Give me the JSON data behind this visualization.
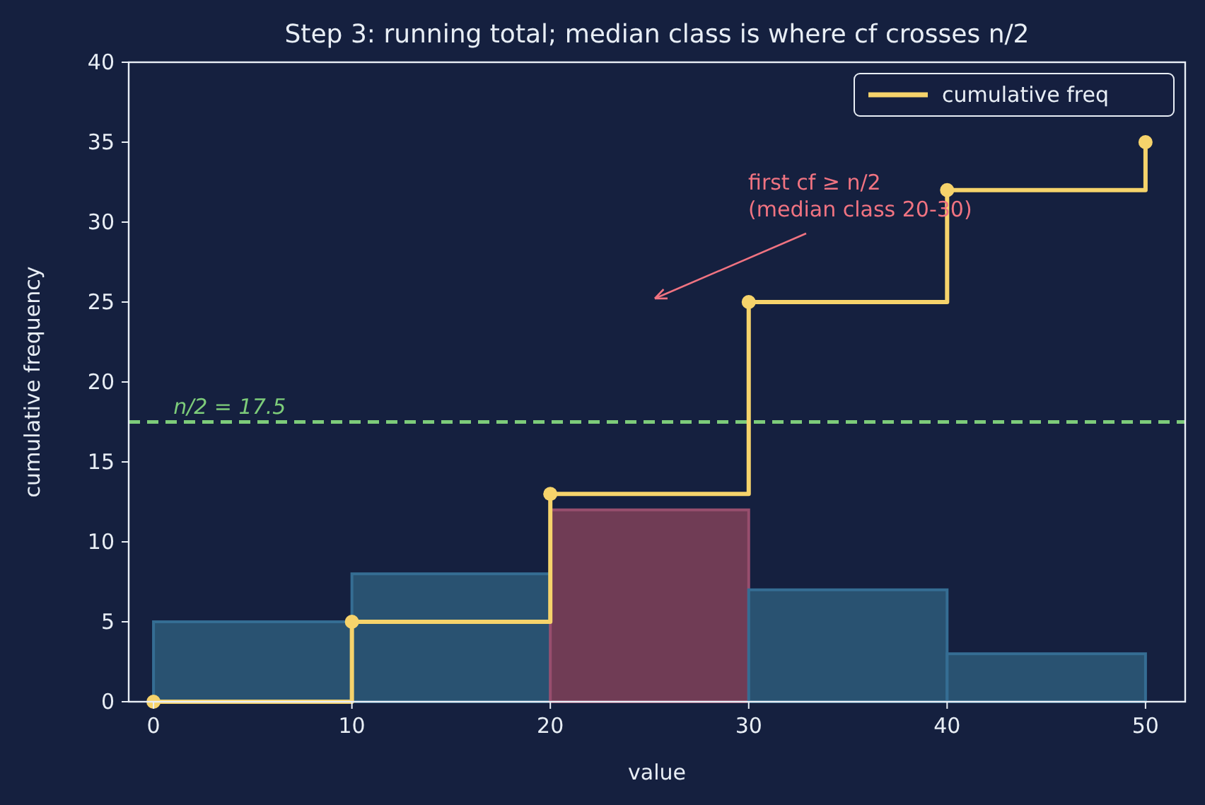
{
  "chart_data": {
    "type": "histogram",
    "title": "Step 3: running total; median class is where cf crosses n/2",
    "xlabel": "value",
    "ylabel": "cumulative frequency",
    "bins": [
      0,
      10,
      20,
      30,
      40,
      50
    ],
    "values": [
      5,
      8,
      12,
      7,
      3
    ],
    "colors": [
      "#2b5877",
      "#2b5877",
      "#7a3f58",
      "#2b5877",
      "#2b5877"
    ],
    "series": [
      {
        "name": "cumulative freq",
        "type": "step",
        "x": [
          0,
          10,
          20,
          30,
          40,
          50
        ],
        "values": [
          0,
          5,
          13,
          25,
          32,
          35
        ],
        "color": "#f6d36b",
        "marker": "circle"
      }
    ],
    "xlim": [
      -1.25,
      52
    ],
    "ylim": [
      0,
      40
    ],
    "xticks": [
      0,
      10,
      20,
      30,
      40,
      50
    ],
    "yticks": [
      0,
      5,
      10,
      15,
      20,
      25,
      30,
      35,
      40
    ],
    "ref_lines": [
      {
        "axis": "y",
        "value": 17.5,
        "label": "n/2 = 17.5",
        "color": "#7dcc7a",
        "line_style": "dashed"
      }
    ],
    "annotations": [
      "first cf ≥ n/2\n(median class 20-30)"
    ],
    "legend": "top right",
    "grid": false
  }
}
